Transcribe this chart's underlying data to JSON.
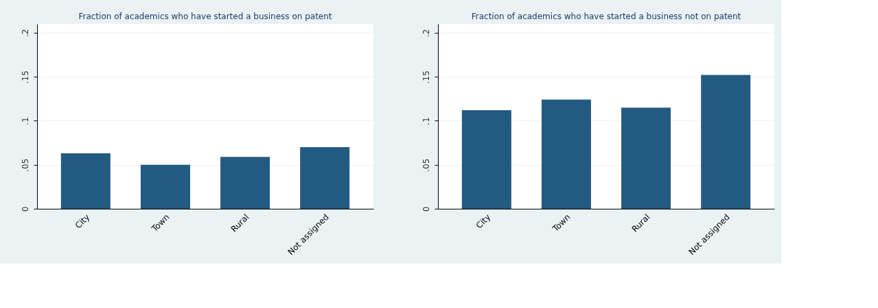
{
  "chart_data": [
    {
      "type": "bar",
      "title": "Fraction of academics who have started a business on patent",
      "categories": [
        "City",
        "Town",
        "Rural",
        "Not assigned"
      ],
      "values": [
        0.063,
        0.05,
        0.059,
        0.07
      ],
      "color": "#235a82",
      "ylim": [
        0,
        0.21
      ],
      "yticks": [
        {
          "value": 0,
          "label": "0"
        },
        {
          "value": 0.05,
          "label": ".05"
        },
        {
          "value": 0.1,
          "label": ".1"
        },
        {
          "value": 0.15,
          "label": ".15"
        },
        {
          "value": 0.2,
          "label": ".2"
        }
      ],
      "grid": "y"
    },
    {
      "type": "bar",
      "title": "Fraction of academics who have started a business not on patent",
      "categories": [
        "City",
        "Town",
        "Rural",
        "Not assigned"
      ],
      "values": [
        0.112,
        0.124,
        0.115,
        0.152
      ],
      "color": "#235a82",
      "ylim": [
        0,
        0.21
      ],
      "yticks": [
        {
          "value": 0,
          "label": "0"
        },
        {
          "value": 0.05,
          "label": ".05"
        },
        {
          "value": 0.1,
          "label": ".1"
        },
        {
          "value": 0.15,
          "label": ".15"
        },
        {
          "value": 0.2,
          "label": ".2"
        }
      ],
      "grid": "y"
    }
  ]
}
